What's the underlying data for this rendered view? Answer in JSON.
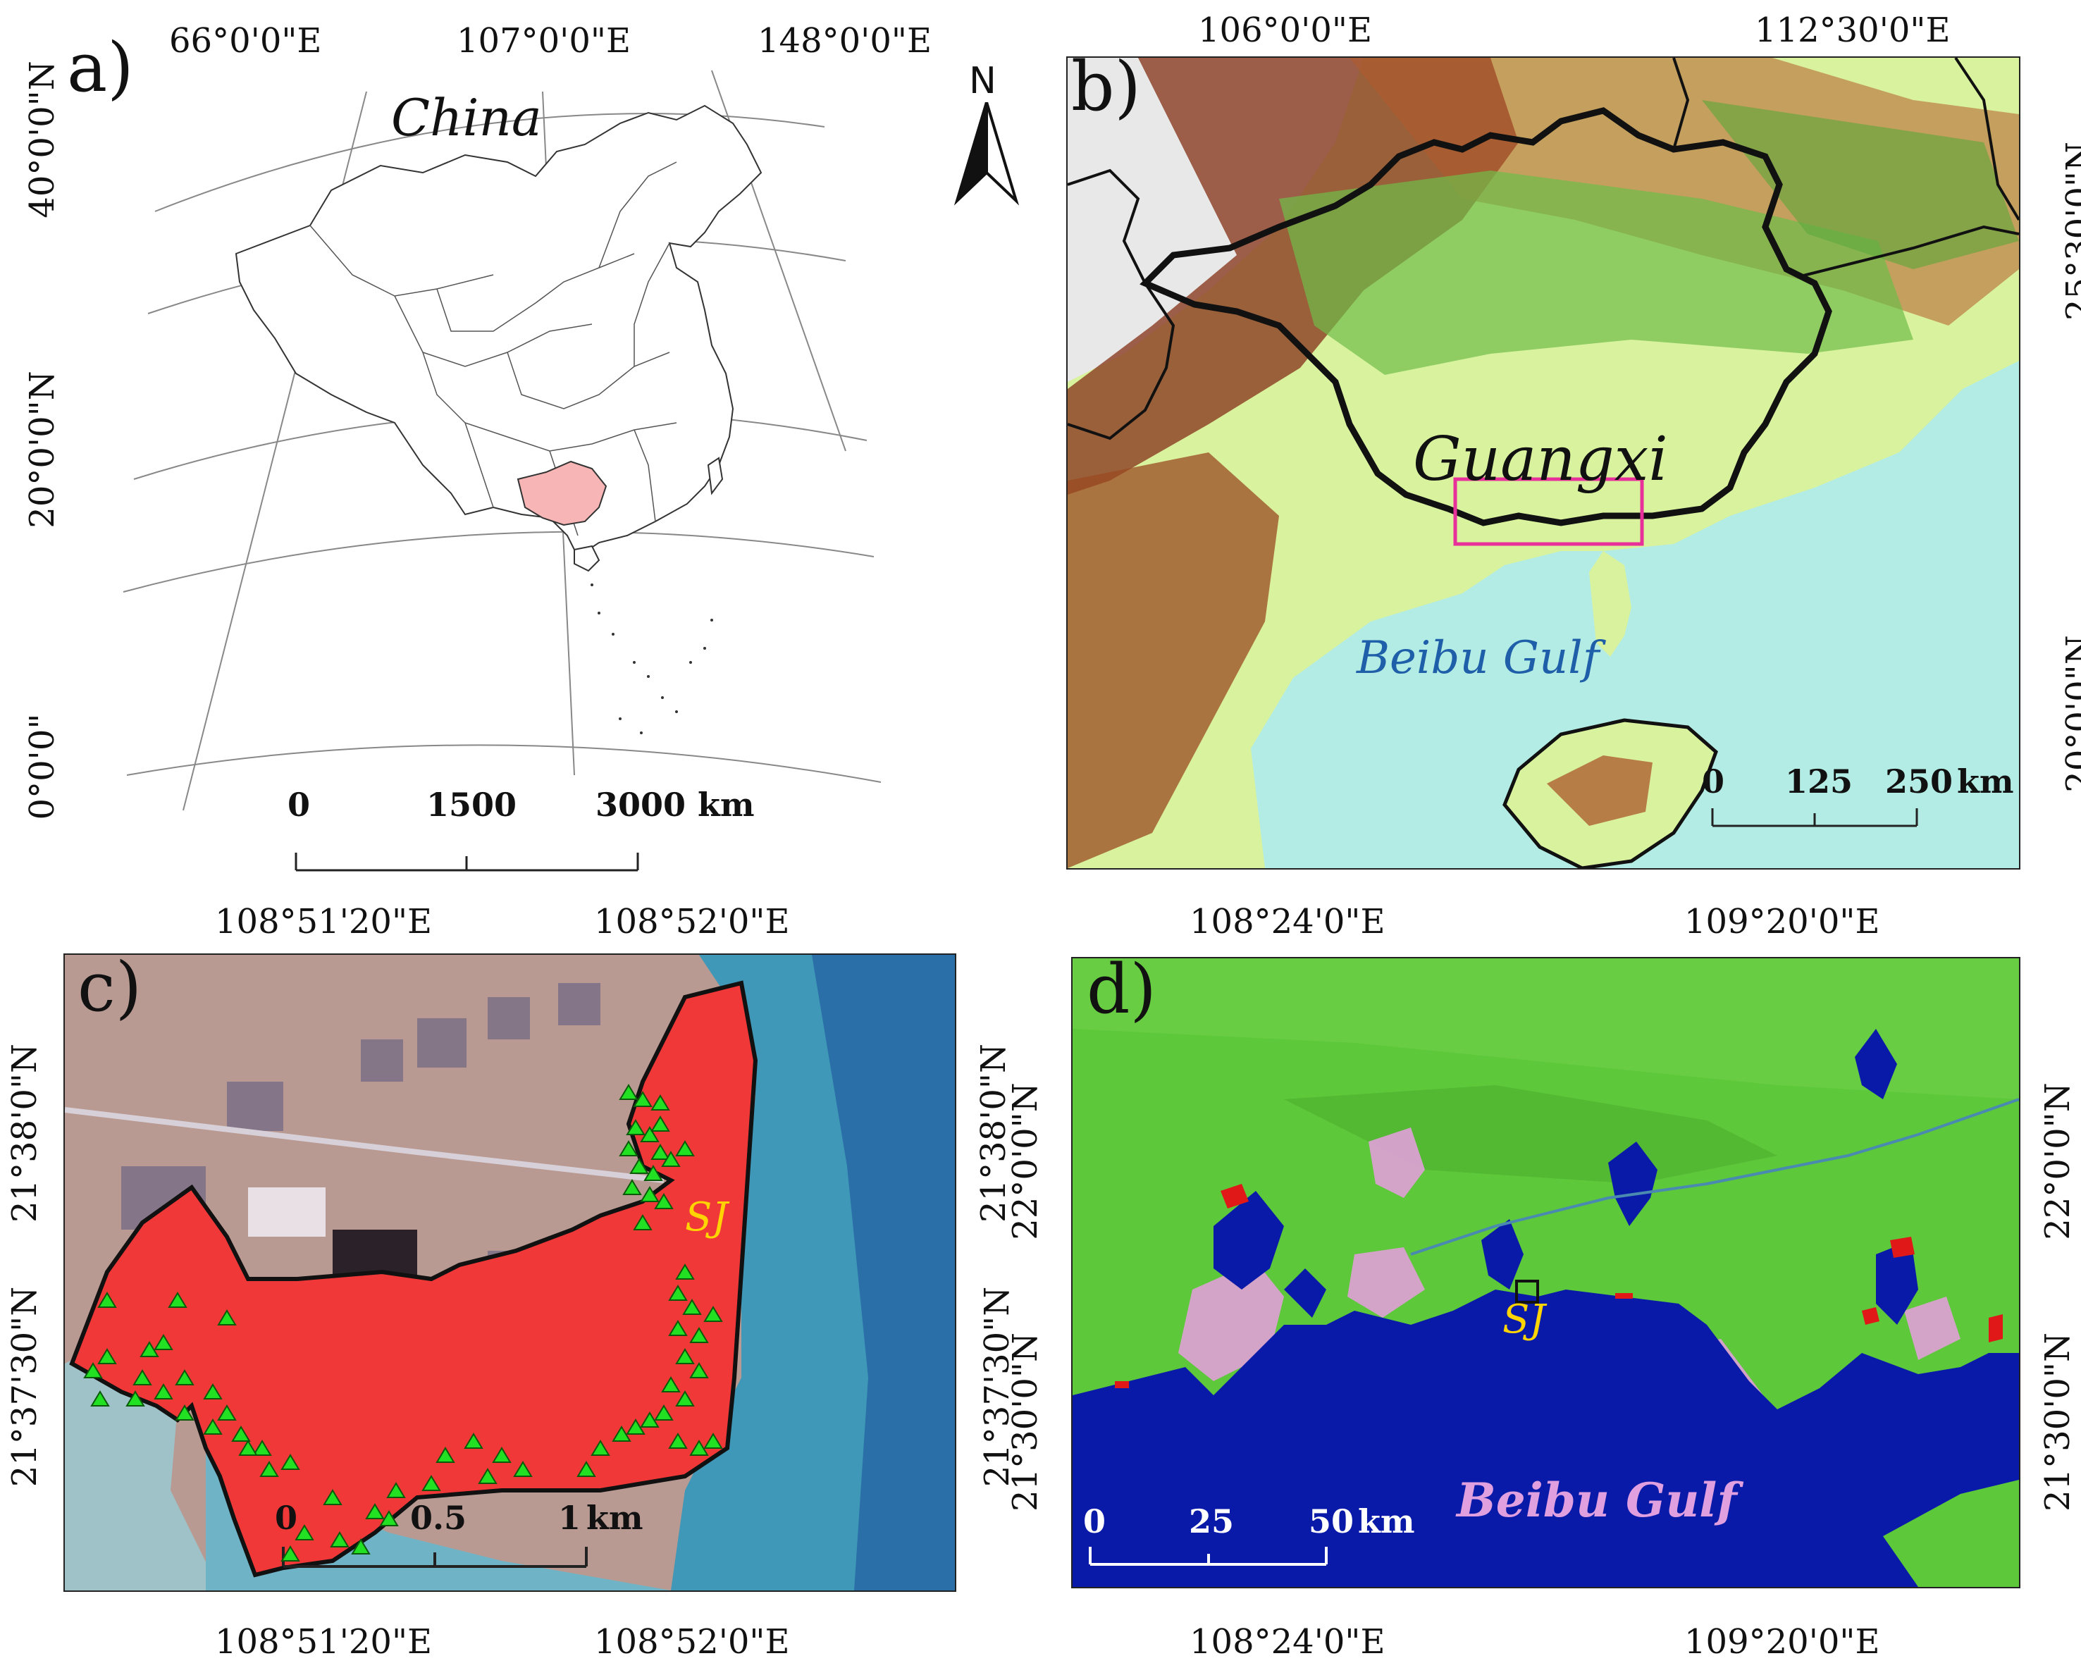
{
  "panel_a": {
    "label": "a)",
    "place_label": "China",
    "top_coords": [
      "66°0'0\"E",
      "107°0'0\"E",
      "148°0'0\"E"
    ],
    "left_coords": [
      "40°0'0\"N",
      "20°0'0\"N",
      "0°0'0\""
    ],
    "scale": {
      "ticks": [
        "0",
        "1500",
        "3000"
      ],
      "unit": "km"
    },
    "highlight_color": "#f7b5b5"
  },
  "panel_b": {
    "label": "b)",
    "north_arrow": "N",
    "region_label": "Guangxi",
    "sea_label": "Beibu Gulf",
    "top_coords": [
      "106°0'0\"E",
      "112°30'0\"E"
    ],
    "right_coords": [
      "25°30'0\"N",
      "20°0'0\"N"
    ],
    "scale": {
      "ticks": [
        "0",
        "125",
        "250"
      ],
      "unit": "km"
    },
    "sea_color": "#b3ece4",
    "box_color": "#e8309a"
  },
  "panel_c": {
    "label": "c)",
    "site_label": "SJ",
    "top_coords": [
      "108°51'20\"E",
      "108°52'0\"E"
    ],
    "bottom_coords": [
      "108°51'20\"E",
      "108°52'0\"E"
    ],
    "left_coords": [
      "21°38'0\"N",
      "21°37'30\"N"
    ],
    "right_coords": [
      "21°38'0\"N",
      "21°37'30\"N"
    ],
    "scale": {
      "ticks": [
        "0",
        "0.5",
        "1"
      ],
      "unit": "km"
    },
    "sample_color": "#22e022",
    "mangrove_color": "#f03838"
  },
  "panel_d": {
    "label": "d)",
    "site_label": "SJ",
    "sea_label": "Beibu Gulf",
    "top_coords": [
      "108°24'0\"E",
      "109°20'0\"E"
    ],
    "bottom_coords": [
      "108°24'0\"E",
      "109°20'0\"E"
    ],
    "left_coords": [
      "22°0'0\"N",
      "21°30'0\"N"
    ],
    "right_coords": [
      "22°0'0\"N",
      "21°30'0\"N"
    ],
    "scale": {
      "ticks": [
        "0",
        "25",
        "50"
      ],
      "unit": "km"
    },
    "land_color": "#5cc83a",
    "sea_color": "#0a1aa8"
  }
}
